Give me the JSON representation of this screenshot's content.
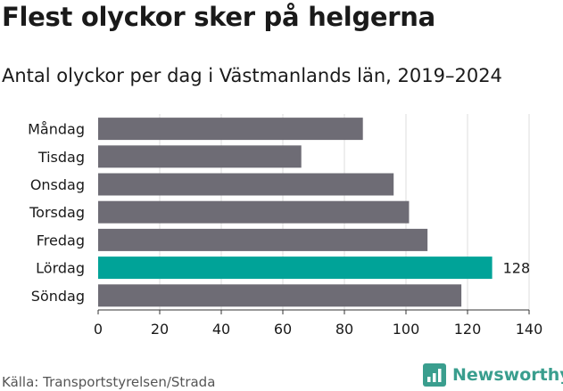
{
  "chart_data": {
    "type": "bar",
    "orientation": "horizontal",
    "title": "Flest olyckor sker på helgerna",
    "subtitle": "Antal olyckor per dag i Västmanlands län, 2019–2024",
    "categories": [
      "Måndag",
      "Tisdag",
      "Onsdag",
      "Torsdag",
      "Fredag",
      "Lördag",
      "Söndag"
    ],
    "values": [
      86,
      66,
      96,
      101,
      107,
      128,
      118
    ],
    "highlight": "Lördag",
    "data_labels": {
      "Lördag": "128"
    },
    "xlim": [
      0,
      140
    ],
    "xticks": [
      0,
      20,
      40,
      60,
      80,
      100,
      120,
      140
    ],
    "grid": "vertical",
    "colors": {
      "bar": "#6e6c75",
      "highlight": "#00a398"
    }
  },
  "source": "Källa: Transportstyrelsen/Strada",
  "brand": {
    "name": "Newsworthy",
    "icon": "bar-chart-logo-icon",
    "color": "#3a9e8e"
  }
}
